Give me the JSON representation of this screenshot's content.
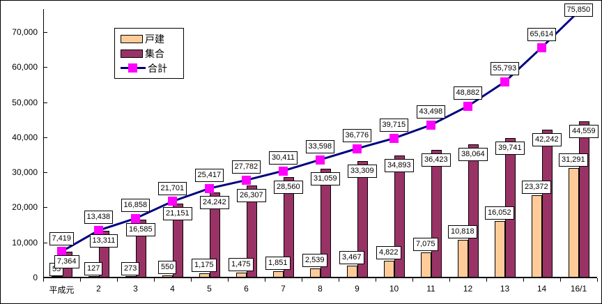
{
  "chart_data": {
    "type": "bar",
    "subtype": "grouped-bars-with-total-line",
    "title": "",
    "xlabel": "",
    "ylabel": "",
    "categories": [
      "平成元",
      "2",
      "3",
      "4",
      "5",
      "6",
      "7",
      "8",
      "9",
      "10",
      "11",
      "12",
      "13",
      "14",
      "16/1"
    ],
    "series": [
      {
        "name": "戸建",
        "type": "bar",
        "color": "#FFCC99",
        "values": [
          55,
          127,
          273,
          550,
          1175,
          1475,
          1851,
          2539,
          3467,
          4822,
          7075,
          10818,
          16052,
          23372,
          31291
        ]
      },
      {
        "name": "集合",
        "type": "bar",
        "color": "#993366",
        "values": [
          7364,
          13311,
          16585,
          21151,
          24242,
          26307,
          28560,
          31059,
          33309,
          34893,
          36423,
          38064,
          39741,
          42242,
          44559
        ]
      },
      {
        "name": "合計",
        "type": "line",
        "line_color": "#000080",
        "marker_color": "#FF00FF",
        "values": [
          7419,
          13438,
          16858,
          21701,
          25417,
          27782,
          30411,
          33598,
          36776,
          39715,
          43498,
          48882,
          55793,
          65614,
          75850
        ]
      }
    ],
    "y_axis": {
      "min": 0,
      "max": 78000,
      "tick_interval": 10000,
      "ticks": [
        {
          "value": 0,
          "label": "0"
        },
        {
          "value": 10000,
          "label": "10,000"
        },
        {
          "value": 20000,
          "label": "20,000"
        },
        {
          "value": 30000,
          "label": "30,000"
        },
        {
          "value": 40000,
          "label": "40,000"
        },
        {
          "value": 50000,
          "label": "50,000"
        },
        {
          "value": 60000,
          "label": "60,000"
        },
        {
          "value": 70000,
          "label": "70,000"
        }
      ]
    },
    "grid": false,
    "legend_position": "upper-left-inset",
    "data_labels": "every point, white boxed labels",
    "colors": {
      "axis": "#000000",
      "background": "#FFFFFF",
      "label_box_border": "#000000",
      "label_box_fill": "#FFFFFF"
    }
  }
}
